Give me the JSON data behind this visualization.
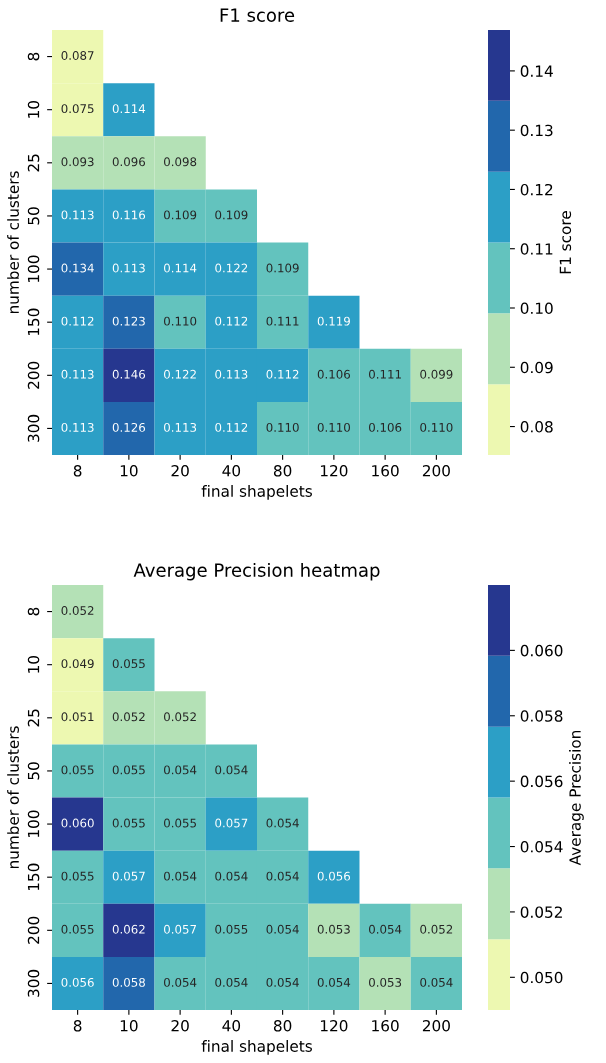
{
  "chart_data": [
    {
      "type": "heatmap",
      "title": "F1 score",
      "xlabel": "final shapelets",
      "ylabel": "number of clusters",
      "clabel": "F1 score",
      "categories": [
        "8",
        "10",
        "20",
        "40",
        "80",
        "120",
        "160",
        "200"
      ],
      "y_categories": [
        "8",
        "10",
        "25",
        "50",
        "100",
        "150",
        "200",
        "300"
      ],
      "cells": [
        [
          0.087,
          null,
          null,
          null,
          null,
          null,
          null,
          null
        ],
        [
          0.075,
          0.114,
          null,
          null,
          null,
          null,
          null,
          null
        ],
        [
          0.093,
          0.096,
          0.098,
          null,
          null,
          null,
          null,
          null
        ],
        [
          0.113,
          0.116,
          0.109,
          0.109,
          null,
          null,
          null,
          null
        ],
        [
          0.134,
          0.113,
          0.114,
          0.122,
          0.109,
          null,
          null,
          null
        ],
        [
          0.112,
          0.123,
          0.11,
          0.112,
          0.111,
          0.119,
          null,
          null
        ],
        [
          0.113,
          0.146,
          0.122,
          0.113,
          0.112,
          0.106,
          0.111,
          0.099
        ],
        [
          0.113,
          0.126,
          0.113,
          0.112,
          0.11,
          0.11,
          0.106,
          0.11
        ]
      ],
      "cell_labels": [
        [
          "0.087",
          null,
          null,
          null,
          null,
          null,
          null,
          null
        ],
        [
          "0.075",
          "0.114",
          null,
          null,
          null,
          null,
          null,
          null
        ],
        [
          "0.093",
          "0.096",
          "0.098",
          null,
          null,
          null,
          null,
          null
        ],
        [
          "0.113",
          "0.116",
          "0.109",
          "0.109",
          null,
          null,
          null,
          null
        ],
        [
          "0.134",
          "0.113",
          "0.114",
          "0.122",
          "0.109",
          null,
          null,
          null
        ],
        [
          "0.112",
          "0.123",
          "0.110",
          "0.112",
          "0.111",
          "0.119",
          null,
          null
        ],
        [
          "0.113",
          "0.146",
          "0.122",
          "0.113",
          "0.112",
          "0.106",
          "0.111",
          "0.099"
        ],
        [
          "0.113",
          "0.126",
          "0.113",
          "0.112",
          "0.110",
          "0.110",
          "0.106",
          "0.110"
        ]
      ],
      "colors": [
        "#edf8b1",
        "#b4e1b6",
        "#63c3be",
        "#2c9fc6",
        "#2267ac",
        "#26378f"
      ],
      "clim": [
        0.0752,
        0.1469
      ],
      "cticks": [
        {
          "value": 0.08,
          "label": "0.08"
        },
        {
          "value": 0.09,
          "label": "0.09"
        },
        {
          "value": 0.1,
          "label": "0.10"
        },
        {
          "value": 0.11,
          "label": "0.11"
        },
        {
          "value": 0.12,
          "label": "0.12"
        },
        {
          "value": 0.13,
          "label": "0.13"
        },
        {
          "value": 0.14,
          "label": "0.14"
        }
      ]
    },
    {
      "type": "heatmap",
      "title": "Average Precision heatmap",
      "xlabel": "final shapelets",
      "ylabel": "number of clusters",
      "clabel": "Average Precision",
      "categories": [
        "8",
        "10",
        "20",
        "40",
        "80",
        "120",
        "160",
        "200"
      ],
      "y_categories": [
        "8",
        "10",
        "25",
        "50",
        "100",
        "150",
        "200",
        "300"
      ],
      "cells": [
        [
          0.052,
          null,
          null,
          null,
          null,
          null,
          null,
          null
        ],
        [
          0.049,
          0.055,
          null,
          null,
          null,
          null,
          null,
          null
        ],
        [
          0.051,
          0.052,
          0.052,
          null,
          null,
          null,
          null,
          null
        ],
        [
          0.055,
          0.055,
          0.054,
          0.054,
          null,
          null,
          null,
          null
        ],
        [
          0.06,
          0.055,
          0.055,
          0.057,
          0.054,
          null,
          null,
          null
        ],
        [
          0.055,
          0.057,
          0.054,
          0.054,
          0.054,
          0.056,
          null,
          null
        ],
        [
          0.055,
          0.062,
          0.057,
          0.055,
          0.054,
          0.053,
          0.054,
          0.052
        ],
        [
          0.056,
          0.058,
          0.054,
          0.054,
          0.054,
          0.054,
          0.053,
          0.054
        ]
      ],
      "cell_labels": [
        [
          "0.052",
          null,
          null,
          null,
          null,
          null,
          null,
          null
        ],
        [
          "0.049",
          "0.055",
          null,
          null,
          null,
          null,
          null,
          null
        ],
        [
          "0.051",
          "0.052",
          "0.052",
          null,
          null,
          null,
          null,
          null
        ],
        [
          "0.055",
          "0.055",
          "0.054",
          "0.054",
          null,
          null,
          null,
          null
        ],
        [
          "0.060",
          "0.055",
          "0.055",
          "0.057",
          "0.054",
          null,
          null,
          null
        ],
        [
          "0.055",
          "0.057",
          "0.054",
          "0.054",
          "0.054",
          "0.056",
          null,
          null
        ],
        [
          "0.055",
          "0.062",
          "0.057",
          "0.055",
          "0.054",
          "0.053",
          "0.054",
          "0.052"
        ],
        [
          "0.056",
          "0.058",
          "0.054",
          "0.054",
          "0.054",
          "0.054",
          "0.053",
          "0.054"
        ]
      ],
      "colors": [
        "#edf8b1",
        "#b4e1b6",
        "#63c3be",
        "#2c9fc6",
        "#2267ac",
        "#26378f"
      ],
      "clim": [
        0.049,
        0.062
      ],
      "cticks": [
        {
          "value": 0.05,
          "label": "0.050"
        },
        {
          "value": 0.052,
          "label": "0.052"
        },
        {
          "value": 0.054,
          "label": "0.054"
        },
        {
          "value": 0.056,
          "label": "0.056"
        },
        {
          "value": 0.058,
          "label": "0.058"
        },
        {
          "value": 0.06,
          "label": "0.060"
        }
      ]
    }
  ]
}
